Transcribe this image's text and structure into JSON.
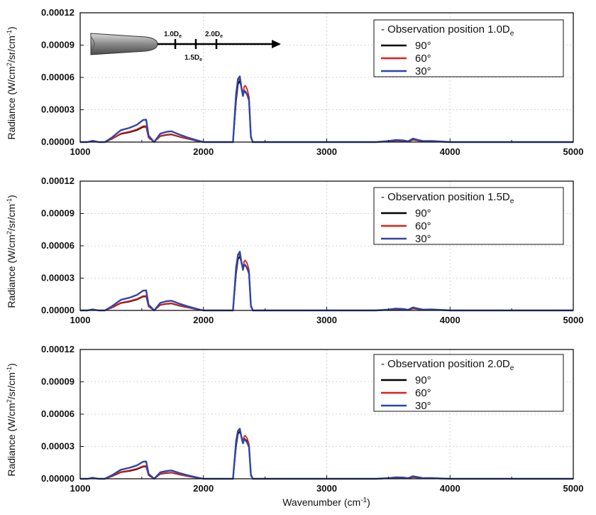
{
  "figure": {
    "xlabel_main": "Wavenumber (cm",
    "xlabel_sup": "-1",
    "xlabel_end": ")",
    "ylabel_parts": [
      "Radiance (W/cm",
      "2",
      "/sr/cm",
      "-1",
      ")"
    ],
    "colors": {
      "90": "#000000",
      "60": "#e0201b",
      "30": "#2f45a8"
    },
    "inset": {
      "label_1": "1.0D",
      "label_1_sub": "e",
      "label_2": "1.5D",
      "label_2_sub": "e",
      "label_3": "2.0D",
      "label_3_sub": "e"
    }
  },
  "chart_data": [
    {
      "type": "line",
      "legend_title": "- Observation position 1.0D",
      "legend_title_sub": "e",
      "xlim": [
        1000,
        5000
      ],
      "ylim": [
        0,
        0.00012
      ],
      "xticks": [
        "1000",
        "2000",
        "3000",
        "4000",
        "5000"
      ],
      "yticks": [
        "0.00000",
        "0.00003",
        "0.00006",
        "0.00009",
        "0.00012"
      ],
      "legend_position": "top-right",
      "series": [
        {
          "name": "90°",
          "x": [
            1000,
            1060,
            1100,
            1150,
            1200,
            1260,
            1330,
            1400,
            1460,
            1510,
            1535,
            1555,
            1600,
            1650,
            1700,
            1740,
            1800,
            1870,
            1950,
            2000,
            2200,
            2240,
            2265,
            2280,
            2295,
            2310,
            2320,
            2330,
            2340,
            2355,
            2370,
            2385,
            2400,
            2500,
            3000,
            3400,
            3500,
            3560,
            3620,
            3660,
            3700,
            3730,
            3780,
            3850,
            3950,
            4000,
            5000
          ],
          "y": [
            0,
            0,
            8e-07,
            0,
            0,
            3e-06,
            7.5e-06,
            9e-06,
            1.1e-05,
            1.4e-05,
            1.42e-05,
            4e-06,
            0,
            5.5e-06,
            6.6e-06,
            7e-06,
            5e-06,
            3e-06,
            1e-06,
            0,
            0,
            0,
            3.8e-05,
            5.35e-05,
            5.7e-05,
            4.9e-05,
            4.25e-05,
            4.8e-05,
            4.6e-05,
            4.45e-05,
            3.8e-05,
            4e-06,
            0,
            0,
            0,
            0,
            5e-07,
            1.2e-06,
            1e-06,
            4e-07,
            2e-06,
            1.5e-06,
            5e-07,
            6e-07,
            2e-07,
            0,
            0
          ]
        },
        {
          "name": "60°",
          "x": [
            1000,
            1060,
            1100,
            1150,
            1200,
            1260,
            1330,
            1400,
            1460,
            1510,
            1535,
            1555,
            1600,
            1650,
            1700,
            1740,
            1800,
            1870,
            1950,
            2000,
            2200,
            2240,
            2265,
            2280,
            2295,
            2310,
            2320,
            2330,
            2340,
            2355,
            2370,
            2385,
            2400,
            2500,
            3000,
            3400,
            3500,
            3560,
            3620,
            3660,
            3700,
            3730,
            3780,
            3850,
            3950,
            4000,
            5000
          ],
          "y": [
            0,
            0,
            9e-07,
            0,
            0,
            3.2e-06,
            8e-06,
            9.7e-06,
            1.18e-05,
            1.48e-05,
            1.5e-05,
            4.2e-06,
            0,
            5.8e-06,
            7e-06,
            7.4e-06,
            5.3e-06,
            3.2e-06,
            1.1e-06,
            0,
            0,
            0,
            4.1e-05,
            5.7e-05,
            5.95e-05,
            5.05e-05,
            4.4e-05,
            5.15e-05,
            5.25e-05,
            4.9e-05,
            4.2e-05,
            4.5e-06,
            0,
            0,
            0,
            0,
            6e-07,
            1.3e-06,
            1.1e-06,
            5e-07,
            2.2e-06,
            1.6e-06,
            6e-07,
            7e-07,
            2e-07,
            0,
            0
          ]
        },
        {
          "name": "30°",
          "x": [
            1000,
            1060,
            1100,
            1150,
            1200,
            1260,
            1330,
            1400,
            1460,
            1510,
            1535,
            1555,
            1600,
            1650,
            1700,
            1740,
            1800,
            1870,
            1950,
            2000,
            2200,
            2240,
            2265,
            2280,
            2295,
            2310,
            2320,
            2330,
            2340,
            2355,
            2370,
            2385,
            2400,
            2500,
            3000,
            3400,
            3500,
            3560,
            3620,
            3660,
            3700,
            3730,
            3780,
            3850,
            3950,
            4000,
            5000
          ],
          "y": [
            0,
            0,
            1.2e-06,
            0,
            0,
            4.5e-06,
            1.1e-05,
            1.32e-05,
            1.6e-05,
            2.05e-05,
            2.08e-05,
            6e-06,
            0,
            7.8e-06,
            9.5e-06,
            1e-05,
            7.2e-06,
            4.3e-06,
            1.5e-06,
            0,
            0,
            0,
            4.5e-05,
            5.85e-05,
            6.1e-05,
            4.9e-05,
            4.3e-05,
            4.75e-05,
            4.7e-05,
            4.4e-05,
            3.9e-05,
            5e-06,
            0,
            0,
            0,
            0,
            9e-07,
            1.9e-06,
            1.6e-06,
            7e-07,
            3.2e-06,
            2.3e-06,
            9e-07,
            1e-06,
            3e-07,
            0,
            0
          ]
        }
      ]
    },
    {
      "type": "line",
      "legend_title": "- Observation position 1.5D",
      "legend_title_sub": "e",
      "xlim": [
        1000,
        5000
      ],
      "ylim": [
        0,
        0.00012
      ],
      "xticks": [
        "1000",
        "2000",
        "3000",
        "4000",
        "5000"
      ],
      "yticks": [
        "0.00000",
        "0.00003",
        "0.00006",
        "0.00009",
        "0.00012"
      ],
      "legend_position": "top-right",
      "series": [
        {
          "name": "90°",
          "x": [
            1000,
            1060,
            1100,
            1150,
            1200,
            1260,
            1330,
            1400,
            1460,
            1510,
            1535,
            1555,
            1600,
            1650,
            1700,
            1740,
            1800,
            1870,
            1950,
            2000,
            2200,
            2240,
            2265,
            2280,
            2295,
            2310,
            2320,
            2330,
            2340,
            2355,
            2370,
            2385,
            2400,
            2500,
            3000,
            3400,
            3500,
            3560,
            3620,
            3660,
            3700,
            3730,
            3780,
            3850,
            3950,
            4000,
            5000
          ],
          "y": [
            0,
            0,
            7e-07,
            0,
            0,
            2.7e-06,
            6.8e-06,
            8.2e-06,
            1e-05,
            1.28e-05,
            1.3e-05,
            3.6e-06,
            0,
            5e-06,
            6e-06,
            6.4e-06,
            4.5e-06,
            2.7e-06,
            9e-07,
            0,
            0,
            0,
            3.4e-05,
            4.75e-05,
            5e-05,
            4.35e-05,
            3.75e-05,
            4.25e-05,
            4.15e-05,
            3.95e-05,
            3.35e-05,
            3.5e-06,
            0,
            0,
            0,
            0,
            4e-07,
            1e-06,
            8e-07,
            3e-07,
            1.7e-06,
            1.3e-06,
            4e-07,
            5e-07,
            2e-07,
            0,
            0
          ]
        },
        {
          "name": "60°",
          "x": [
            1000,
            1060,
            1100,
            1150,
            1200,
            1260,
            1330,
            1400,
            1460,
            1510,
            1535,
            1555,
            1600,
            1650,
            1700,
            1740,
            1800,
            1870,
            1950,
            2000,
            2200,
            2240,
            2265,
            2280,
            2295,
            2310,
            2320,
            2330,
            2340,
            2355,
            2370,
            2385,
            2400,
            2500,
            3000,
            3400,
            3500,
            3560,
            3620,
            3660,
            3700,
            3730,
            3780,
            3850,
            3950,
            4000,
            5000
          ],
          "y": [
            0,
            0,
            8e-07,
            0,
            0,
            2.9e-06,
            7.2e-06,
            8.8e-06,
            1.06e-05,
            1.34e-05,
            1.36e-05,
            3.8e-06,
            0,
            5.3e-06,
            6.3e-06,
            6.7e-06,
            4.8e-06,
            2.9e-06,
            1e-06,
            0,
            0,
            0,
            3.65e-05,
            5.05e-05,
            5.25e-05,
            4.5e-05,
            3.9e-05,
            4.55e-05,
            4.65e-05,
            4.35e-05,
            3.75e-05,
            4e-06,
            0,
            0,
            0,
            0,
            5e-07,
            1.1e-06,
            9e-07,
            4e-07,
            1.9e-06,
            1.4e-06,
            5e-07,
            6e-07,
            2e-07,
            0,
            0
          ]
        },
        {
          "name": "30°",
          "x": [
            1000,
            1060,
            1100,
            1150,
            1200,
            1260,
            1330,
            1400,
            1460,
            1510,
            1535,
            1555,
            1600,
            1650,
            1700,
            1740,
            1800,
            1870,
            1950,
            2000,
            2200,
            2240,
            2265,
            2280,
            2295,
            2310,
            2320,
            2330,
            2340,
            2355,
            2370,
            2385,
            2400,
            2500,
            3000,
            3400,
            3500,
            3560,
            3620,
            3660,
            3700,
            3730,
            3780,
            3850,
            3950,
            4000,
            5000
          ],
          "y": [
            0,
            0,
            1e-06,
            0,
            0,
            4e-06,
            9.8e-06,
            1.18e-05,
            1.43e-05,
            1.83e-05,
            1.86e-05,
            5.3e-06,
            0,
            7e-06,
            8.5e-06,
            9e-06,
            6.4e-06,
            3.8e-06,
            1.3e-06,
            0,
            0,
            0,
            4e-05,
            5.15e-05,
            5.45e-05,
            4.35e-05,
            3.85e-05,
            4.25e-05,
            4.2e-05,
            3.9e-05,
            3.45e-05,
            4.5e-06,
            0,
            0,
            0,
            0,
            8e-07,
            1.7e-06,
            1.4e-06,
            6e-07,
            2.8e-06,
            2e-06,
            8e-07,
            9e-07,
            3e-07,
            0,
            0
          ]
        }
      ]
    },
    {
      "type": "line",
      "legend_title": "- Observation position 2.0D",
      "legend_title_sub": "e",
      "xlim": [
        1000,
        5000
      ],
      "ylim": [
        0,
        0.00012
      ],
      "xticks": [
        "1000",
        "2000",
        "3000",
        "4000",
        "5000"
      ],
      "yticks": [
        "0.00000",
        "0.00003",
        "0.00006",
        "0.00009",
        "0.00012"
      ],
      "legend_position": "top-right",
      "series": [
        {
          "name": "90°",
          "x": [
            1000,
            1060,
            1100,
            1150,
            1200,
            1260,
            1330,
            1400,
            1460,
            1510,
            1535,
            1555,
            1600,
            1650,
            1700,
            1740,
            1800,
            1870,
            1950,
            2000,
            2200,
            2240,
            2265,
            2280,
            2295,
            2310,
            2320,
            2330,
            2340,
            2355,
            2370,
            2385,
            2400,
            2500,
            3000,
            3400,
            3500,
            3560,
            3620,
            3660,
            3700,
            3730,
            3780,
            3850,
            3950,
            4000,
            5000
          ],
          "y": [
            0,
            0,
            6e-07,
            0,
            0,
            2.4e-06,
            6e-06,
            7.2e-06,
            8.8e-06,
            1.12e-05,
            1.14e-05,
            3.2e-06,
            0,
            4.4e-06,
            5.3e-06,
            5.6e-06,
            4e-06,
            2.4e-06,
            8e-07,
            0,
            0,
            0,
            3e-05,
            4.15e-05,
            4.4e-05,
            3.85e-05,
            3.3e-05,
            3.75e-05,
            3.65e-05,
            3.5e-05,
            2.95e-05,
            3e-06,
            0,
            0,
            0,
            0,
            4e-07,
            9e-07,
            7e-07,
            3e-07,
            1.5e-06,
            1.1e-06,
            4e-07,
            4e-07,
            1e-07,
            0,
            0
          ]
        },
        {
          "name": "60°",
          "x": [
            1000,
            1060,
            1100,
            1150,
            1200,
            1260,
            1330,
            1400,
            1460,
            1510,
            1535,
            1555,
            1600,
            1650,
            1700,
            1740,
            1800,
            1870,
            1950,
            2000,
            2200,
            2240,
            2265,
            2280,
            2295,
            2310,
            2320,
            2330,
            2340,
            2355,
            2370,
            2385,
            2400,
            2500,
            3000,
            3400,
            3500,
            3560,
            3620,
            3660,
            3700,
            3730,
            3780,
            3850,
            3950,
            4000,
            5000
          ],
          "y": [
            0,
            0,
            7e-07,
            0,
            0,
            2.6e-06,
            6.4e-06,
            7.7e-06,
            9.4e-06,
            1.18e-05,
            1.2e-05,
            3.4e-06,
            0,
            4.6e-06,
            5.6e-06,
            5.9e-06,
            4.2e-06,
            2.6e-06,
            9e-07,
            0,
            0,
            0,
            3.2e-05,
            4.35e-05,
            4.5e-05,
            3.9e-05,
            3.45e-05,
            3.95e-05,
            4e-05,
            3.75e-05,
            3.2e-05,
            3.5e-06,
            0,
            0,
            0,
            0,
            4e-07,
            1e-06,
            8e-07,
            3e-07,
            1.7e-06,
            1.2e-06,
            4e-07,
            5e-07,
            2e-07,
            0,
            0
          ]
        },
        {
          "name": "30°",
          "x": [
            1000,
            1060,
            1100,
            1150,
            1200,
            1260,
            1330,
            1400,
            1460,
            1510,
            1535,
            1555,
            1600,
            1650,
            1700,
            1740,
            1800,
            1870,
            1950,
            2000,
            2200,
            2240,
            2265,
            2280,
            2295,
            2310,
            2320,
            2330,
            2340,
            2355,
            2370,
            2385,
            2400,
            2500,
            3000,
            3400,
            3500,
            3560,
            3620,
            3660,
            3700,
            3730,
            3780,
            3850,
            3950,
            4000,
            5000
          ],
          "y": [
            0,
            0,
            9e-07,
            0,
            0,
            3.4e-06,
            8.4e-06,
            1.02e-05,
            1.24e-05,
            1.58e-05,
            1.6e-05,
            4.6e-06,
            0,
            6e-06,
            7.2e-06,
            7.7e-06,
            5.5e-06,
            3.3e-06,
            1.1e-06,
            0,
            0,
            0,
            3.5e-05,
            4.45e-05,
            4.65e-05,
            3.75e-05,
            3.3e-05,
            3.65e-05,
            3.6e-05,
            3.35e-05,
            2.95e-05,
            3.8e-06,
            0,
            0,
            0,
            0,
            6e-07,
            1.4e-06,
            1.2e-06,
            5e-07,
            2.4e-06,
            1.7e-06,
            6e-07,
            7e-07,
            2e-07,
            0,
            0
          ]
        }
      ]
    }
  ]
}
